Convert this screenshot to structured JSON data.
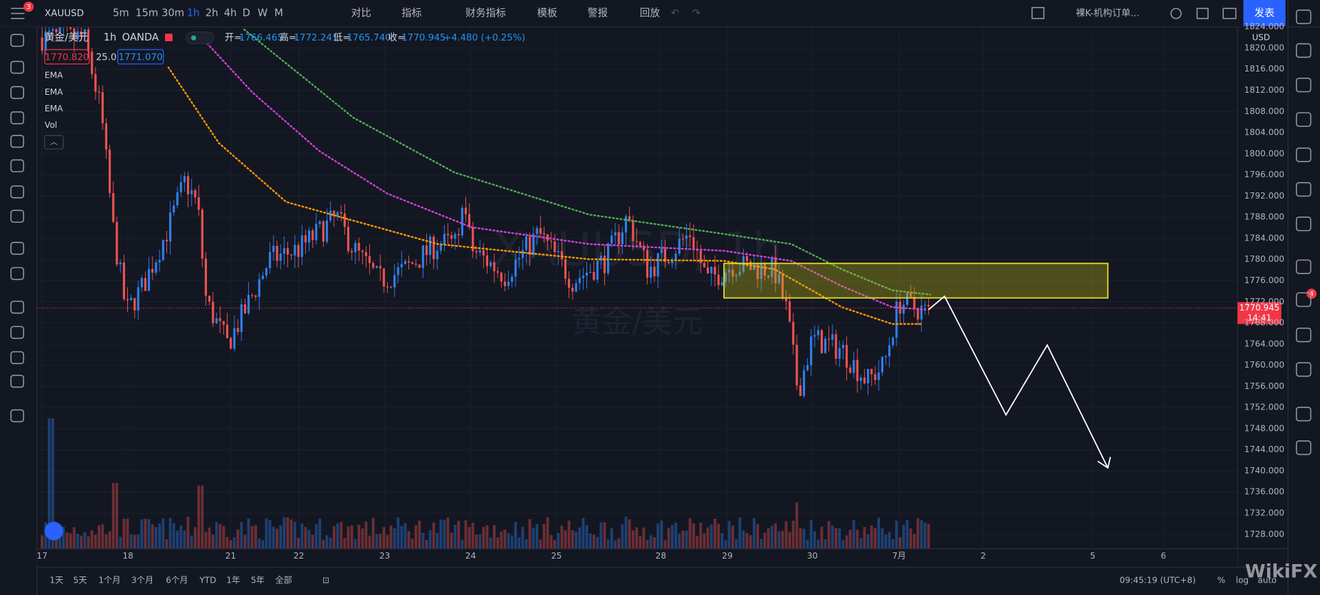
{
  "toolbar": {
    "badge": "3",
    "symbol": "XAUUSD",
    "intervals": [
      "5m",
      "15m",
      "30m",
      "1h",
      "2h",
      "4h",
      "D",
      "W",
      "M"
    ],
    "buttons": [
      "对比",
      "指标",
      "财务指标",
      "模板",
      "警报",
      "回放"
    ],
    "layout_name": "裸K-机构订单...",
    "publish": "发表"
  },
  "legend": {
    "name": "黄金/美元",
    "interval": "1h",
    "source": "OANDA",
    "open_label": "开=",
    "open": "1766.465",
    "high_label": "高=",
    "high": "1772.241",
    "low_label": "低=",
    "low": "1765.740",
    "close_label": "收=",
    "close": "1770.945",
    "change": "+4.480 (+0.25%)",
    "bid": "1770.820",
    "spread": "25.0",
    "ask": "1771.070",
    "indicators": [
      "EMA",
      "EMA",
      "EMA",
      "Vol"
    ]
  },
  "watermark": {
    "symbol": "XAUUSD, 1h",
    "name": "黄金/美元"
  },
  "price_axis": {
    "currency": "USD",
    "ticks": [
      "1824.000",
      "1820.000",
      "1816.000",
      "1812.000",
      "1808.000",
      "1804.000",
      "1800.000",
      "1796.000",
      "1792.000",
      "1788.000",
      "1784.000",
      "1780.000",
      "1776.000",
      "1772.000",
      "1768.000",
      "1764.000",
      "1760.000",
      "1756.000",
      "1752.000",
      "1748.000",
      "1744.000",
      "1740.000",
      "1736.000",
      "1732.000",
      "1728.000"
    ],
    "last_price": "1770.945",
    "countdown": "14:41"
  },
  "time_axis": {
    "labels": [
      "17",
      "18",
      "21",
      "22",
      "23",
      "24",
      "25",
      "28",
      "29",
      "30",
      "7月",
      "2",
      "5",
      "6"
    ]
  },
  "right_toolbar": {
    "badge": "4"
  },
  "bottom_bar": {
    "ranges": [
      "1天",
      "5天",
      "1个月",
      "3个月",
      "6个月",
      "YTD",
      "1年",
      "5年",
      "全部"
    ],
    "clock": "09:45:19 (UTC+8)",
    "percent": "%",
    "log": "log",
    "auto": "auto"
  },
  "brand": "WikiFX"
}
